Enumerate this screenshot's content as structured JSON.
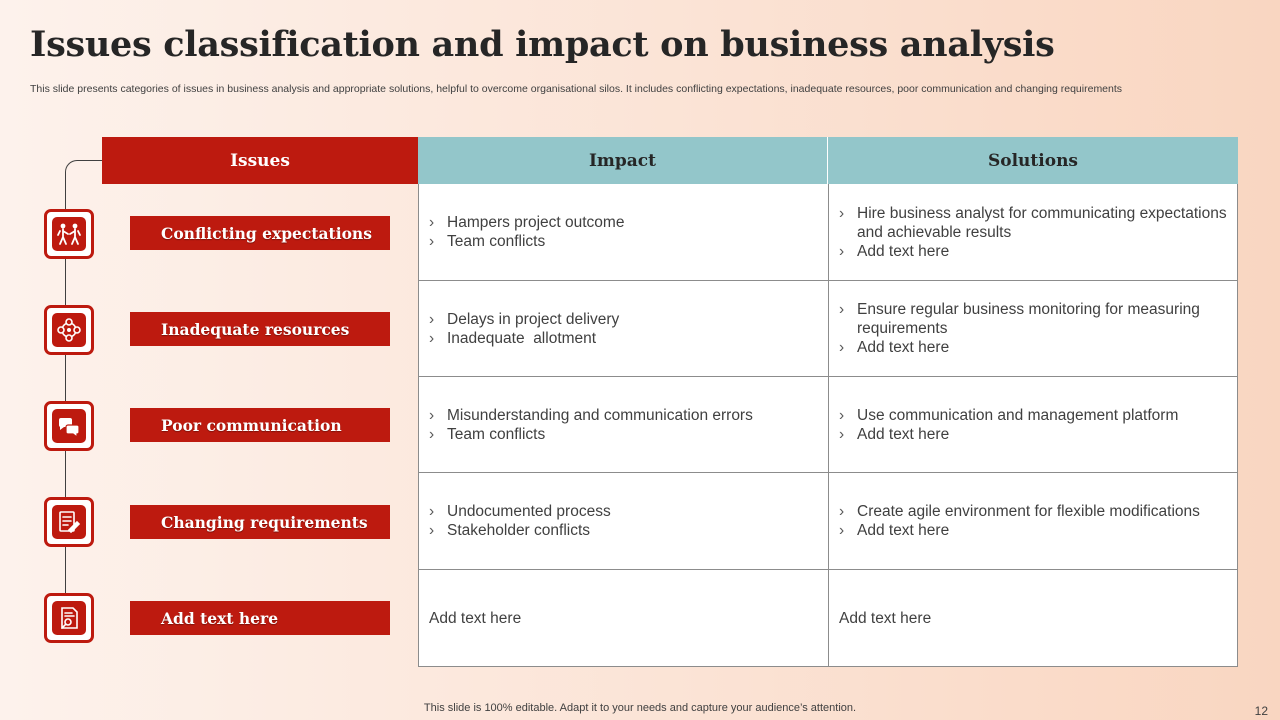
{
  "title": "Issues classification and impact on business analysis",
  "subtitle": "This slide presents categories of issues in business analysis and appropriate solutions, helpful to overcome organisational silos. It includes conflicting expectations, inadequate resources, poor communication and changing requirements",
  "columns": {
    "issues": "Issues",
    "impact": "Impact",
    "solutions": "Solutions"
  },
  "accent_color": "#bd1a0f",
  "header_color": "#93c6ca",
  "rows": [
    {
      "issue": "Conflicting expectations",
      "icon": "people-conflict-icon",
      "impact": [
        "Hampers project outcome",
        "Team conflicts"
      ],
      "solutions": [
        "Hire business analyst for communicating expectations and achievable results",
        "Add text here"
      ]
    },
    {
      "issue": "Inadequate resources",
      "icon": "resources-network-icon",
      "impact": [
        "Delays in project delivery",
        "Inadequate  allotment"
      ],
      "solutions": [
        "Ensure regular business monitoring for measuring requirements",
        "Add text here"
      ]
    },
    {
      "issue": "Poor communication",
      "icon": "chat-bubbles-icon",
      "impact": [
        "Misunderstanding and communication errors",
        "Team conflicts"
      ],
      "solutions": [
        "Use communication and management platform",
        "Add text here"
      ]
    },
    {
      "issue": "Changing requirements",
      "icon": "checklist-change-icon",
      "impact": [
        "Undocumented process",
        "Stakeholder conflicts"
      ],
      "solutions": [
        "Create agile environment for flexible modifications",
        "Add text here"
      ]
    },
    {
      "issue": "Add text here",
      "icon": "document-search-icon",
      "impact_text": "Add text here",
      "solutions_text": "Add text here"
    }
  ],
  "bullet_glyph": "›",
  "footer": "This slide is 100% editable. Adapt it to your needs and capture your audience’s attention.",
  "page_number": "12"
}
